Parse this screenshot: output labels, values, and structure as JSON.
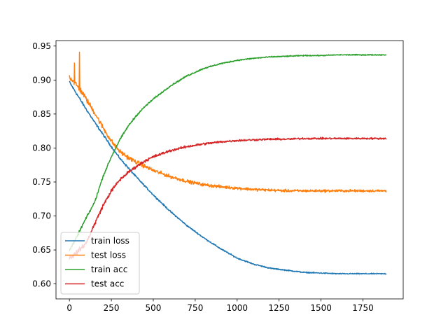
{
  "chart_data": {
    "type": "line",
    "title": "",
    "xlabel": "",
    "ylabel": "",
    "xlim": [
      -80,
      1990
    ],
    "ylim": [
      0.578,
      0.958
    ],
    "xticks": [
      0,
      250,
      500,
      750,
      1000,
      1250,
      1500,
      1750
    ],
    "xtick_labels": [
      "0",
      "250",
      "500",
      "750",
      "1000",
      "1250",
      "1500",
      "1750"
    ],
    "yticks": [
      0.6,
      0.65,
      0.7,
      0.75,
      0.8,
      0.85,
      0.9,
      0.95
    ],
    "ytick_labels": [
      "0.60",
      "0.65",
      "0.70",
      "0.75",
      "0.80",
      "0.85",
      "0.90",
      "0.95"
    ],
    "grid": false,
    "legend_position": "lower-left",
    "series": [
      {
        "name": "train loss",
        "color": "#1f77b4",
        "x": [
          0,
          25,
          50,
          75,
          100,
          150,
          200,
          250,
          300,
          350,
          400,
          450,
          500,
          600,
          700,
          800,
          900,
          1000,
          1100,
          1200,
          1300,
          1400,
          1500,
          1600,
          1700,
          1800,
          1890
        ],
        "values": [
          0.897,
          0.887,
          0.877,
          0.867,
          0.857,
          0.838,
          0.82,
          0.802,
          0.785,
          0.771,
          0.757,
          0.744,
          0.731,
          0.707,
          0.686,
          0.668,
          0.652,
          0.638,
          0.629,
          0.623,
          0.62,
          0.617,
          0.616,
          0.615,
          0.615,
          0.615,
          0.615
        ],
        "noise": 0.003
      },
      {
        "name": "test loss",
        "color": "#ff7f0e",
        "x": [
          0,
          25,
          50,
          75,
          100,
          150,
          200,
          250,
          300,
          350,
          400,
          450,
          500,
          600,
          700,
          800,
          900,
          1000,
          1100,
          1200,
          1300,
          1400,
          1500,
          1600,
          1700,
          1800,
          1890
        ],
        "values": [
          0.905,
          0.898,
          0.89,
          0.882,
          0.872,
          0.852,
          0.83,
          0.81,
          0.795,
          0.786,
          0.779,
          0.773,
          0.767,
          0.758,
          0.751,
          0.746,
          0.743,
          0.741,
          0.739,
          0.738,
          0.737,
          0.737,
          0.737,
          0.737,
          0.737,
          0.737,
          0.737
        ],
        "noise": 0.007,
        "spikes": [
          [
            60,
            0.941
          ],
          [
            30,
            0.925
          ],
          [
            85,
            0.915
          ]
        ]
      },
      {
        "name": "train acc",
        "color": "#2ca02c",
        "x": [
          0,
          25,
          50,
          75,
          100,
          150,
          200,
          250,
          300,
          350,
          400,
          450,
          500,
          600,
          700,
          800,
          900,
          1000,
          1100,
          1200,
          1300,
          1400,
          1500,
          1600,
          1700,
          1800,
          1890
        ],
        "values": [
          0.65,
          0.66,
          0.672,
          0.685,
          0.697,
          0.72,
          0.758,
          0.787,
          0.812,
          0.832,
          0.848,
          0.861,
          0.872,
          0.891,
          0.906,
          0.917,
          0.924,
          0.929,
          0.932,
          0.934,
          0.935,
          0.936,
          0.936,
          0.937,
          0.937,
          0.937,
          0.937
        ],
        "noise": 0.003
      },
      {
        "name": "test acc",
        "color": "#d62728",
        "x": [
          0,
          25,
          50,
          75,
          100,
          150,
          200,
          250,
          300,
          350,
          400,
          450,
          500,
          600,
          700,
          800,
          900,
          1000,
          1100,
          1200,
          1300,
          1400,
          1500,
          1600,
          1700,
          1800,
          1890
        ],
        "values": [
          0.638,
          0.642,
          0.648,
          0.654,
          0.66,
          0.688,
          0.715,
          0.737,
          0.753,
          0.764,
          0.773,
          0.781,
          0.787,
          0.796,
          0.802,
          0.806,
          0.809,
          0.811,
          0.812,
          0.813,
          0.813,
          0.814,
          0.814,
          0.814,
          0.814,
          0.814,
          0.814
        ],
        "noise": 0.005
      }
    ]
  }
}
